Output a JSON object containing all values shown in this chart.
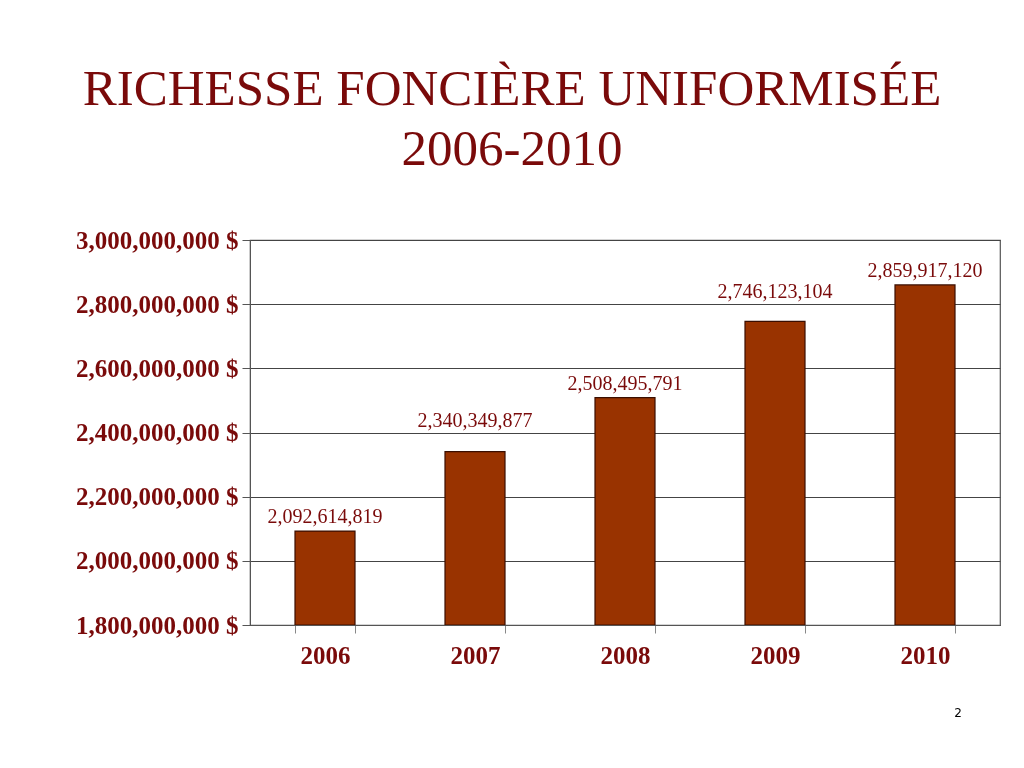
{
  "chart_data": {
    "type": "bar",
    "title": "RICHESSE FONCIÈRE UNIFORMISÉE\n2006-2010",
    "categories": [
      "2006",
      "2007",
      "2008",
      "2009",
      "2010"
    ],
    "values": [
      2092614819,
      2340349877,
      2508495791,
      2746123104,
      2859917120
    ],
    "value_labels": [
      "2,092,614,819",
      "2,340,349,877",
      "2,508,495,791",
      "2,746,123,104",
      "2,859,917,120"
    ],
    "color": "#993300",
    "grid": "y",
    "ylim": [
      1800000000,
      3000000000
    ],
    "yticks": [
      {
        "value": 1800000000,
        "label": "1,800,000,000 $"
      },
      {
        "value": 2000000000,
        "label": "2,000,000,000 $"
      },
      {
        "value": 2200000000,
        "label": "2,200,000,000 $"
      },
      {
        "value": 2400000000,
        "label": "2,400,000,000 $"
      },
      {
        "value": 2600000000,
        "label": "2,600,000,000 $"
      },
      {
        "value": 2800000000,
        "label": "2,800,000,000 $"
      },
      {
        "value": 3000000000,
        "label": "3,000,000,000 $"
      }
    ],
    "annotations": [
      "2"
    ]
  }
}
